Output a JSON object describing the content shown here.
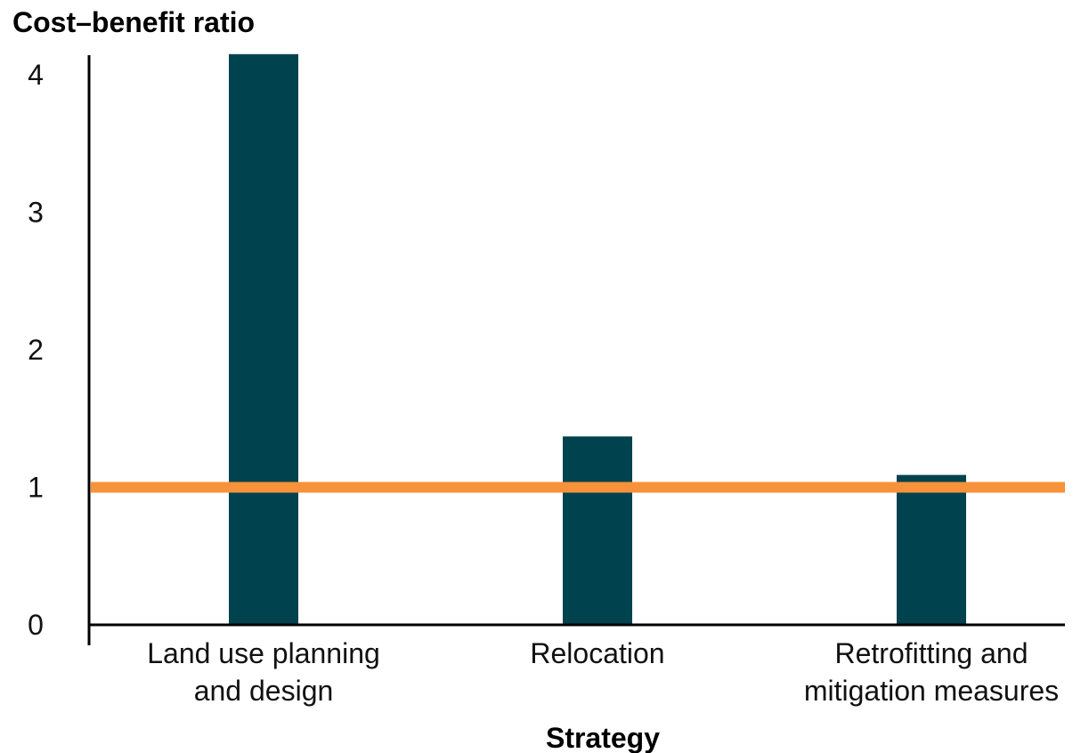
{
  "chart_data": {
    "type": "bar",
    "ylabel": "Cost–benefit ratio",
    "xlabel": "Strategy",
    "categories": [
      [
        "Land use planning",
        "and design"
      ],
      [
        "Relocation"
      ],
      [
        "Retrofitting and",
        "mitigation measures"
      ]
    ],
    "values": [
      4.15,
      1.37,
      1.09
    ],
    "yticks": [
      0,
      1,
      2,
      3,
      4
    ],
    "ylim": [
      0,
      4.15
    ],
    "reference_line": {
      "value": 1,
      "color": "#f7923a"
    },
    "bar_color": "#01424f",
    "grid": false
  }
}
